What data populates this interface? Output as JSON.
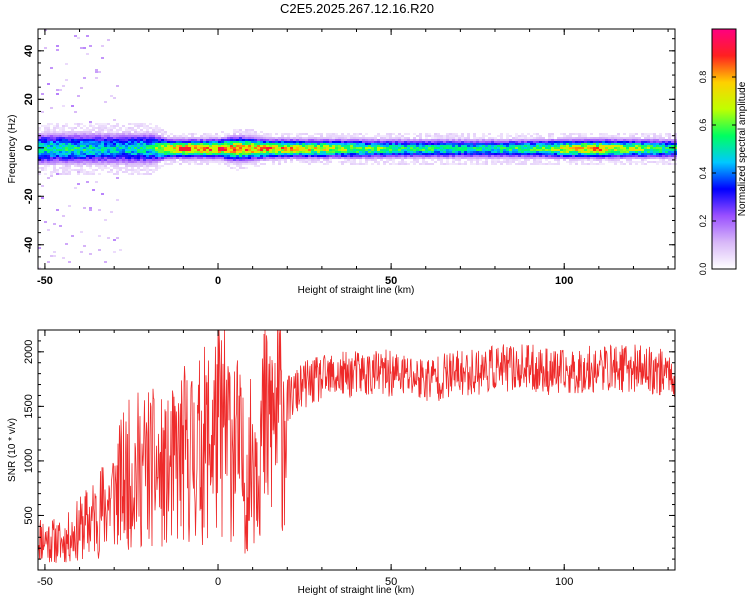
{
  "figure": {
    "title": "C2E5.2025.267.12.16.R20"
  },
  "chart_data": [
    {
      "type": "heatmap",
      "xlabel": "Height of straight line (km)",
      "ylabel": "Frequency (Hz)",
      "xlim": [
        -52,
        132
      ],
      "ylim": [
        -50,
        49
      ],
      "xticks": [
        -50,
        0,
        50,
        100
      ],
      "yticks": [
        -40,
        -20,
        0,
        20,
        40
      ],
      "colorbar": {
        "label": "Normalized spectral amplitude",
        "range": [
          0,
          1
        ],
        "ticks": [
          0.0,
          0.2,
          0.4,
          0.6,
          0.8
        ],
        "colors": [
          "#ffffff",
          "#d8b8f8",
          "#9a50ff",
          "#0000ff",
          "#00c8ff",
          "#00ff60",
          "#c0ff00",
          "#ffd000",
          "#ff2020",
          "#ff0080"
        ]
      },
      "band_center_hz": 0,
      "band_profile": [
        {
          "x": -50,
          "peak": 0.55,
          "halfwidth_hz": 5
        },
        {
          "x": -40,
          "peak": 0.55,
          "halfwidth_hz": 5
        },
        {
          "x": -30,
          "peak": 0.5,
          "halfwidth_hz": 5
        },
        {
          "x": -20,
          "peak": 0.55,
          "halfwidth_hz": 5
        },
        {
          "x": -15,
          "peak": 0.85,
          "halfwidth_hz": 3
        },
        {
          "x": 0,
          "peak": 0.9,
          "halfwidth_hz": 3
        },
        {
          "x": 5,
          "peak": 0.85,
          "halfwidth_hz": 4
        },
        {
          "x": 15,
          "peak": 0.85,
          "halfwidth_hz": 3
        },
        {
          "x": 30,
          "peak": 0.75,
          "halfwidth_hz": 3
        },
        {
          "x": 50,
          "peak": 0.6,
          "halfwidth_hz": 3
        },
        {
          "x": 75,
          "peak": 0.55,
          "halfwidth_hz": 3
        },
        {
          "x": 90,
          "peak": 0.6,
          "halfwidth_hz": 3
        },
        {
          "x": 100,
          "peak": 0.75,
          "halfwidth_hz": 3
        },
        {
          "x": 110,
          "peak": 0.85,
          "halfwidth_hz": 3
        },
        {
          "x": 120,
          "peak": 0.7,
          "halfwidth_hz": 3
        },
        {
          "x": 130,
          "peak": 0.6,
          "halfwidth_hz": 3
        }
      ],
      "scatter_region_km": [
        -52,
        -28
      ]
    },
    {
      "type": "line",
      "xlabel": "Height of straight line (km)",
      "ylabel": "SNR (10 * v/v)",
      "xlim": [
        -52,
        132
      ],
      "ylim": [
        0,
        2200
      ],
      "xticks": [
        -50,
        0,
        50,
        100
      ],
      "yticks": [
        500,
        1000,
        1500,
        2000
      ],
      "series": [
        {
          "color": "#ee2a2a",
          "x": [
            -52,
            -45,
            -35,
            -25,
            -20,
            -15,
            -10,
            -5,
            0,
            5,
            7,
            8,
            10,
            15,
            20,
            25,
            30,
            40,
            50,
            60,
            70,
            80,
            90,
            100,
            110,
            120,
            132
          ],
          "y": [
            300,
            250,
            500,
            900,
            950,
            850,
            1050,
            1100,
            1300,
            1200,
            950,
            700,
            1100,
            1350,
            1550,
            1700,
            1750,
            1800,
            1800,
            1750,
            1800,
            1850,
            1850,
            1800,
            1850,
            1850,
            1800
          ]
        }
      ]
    }
  ]
}
